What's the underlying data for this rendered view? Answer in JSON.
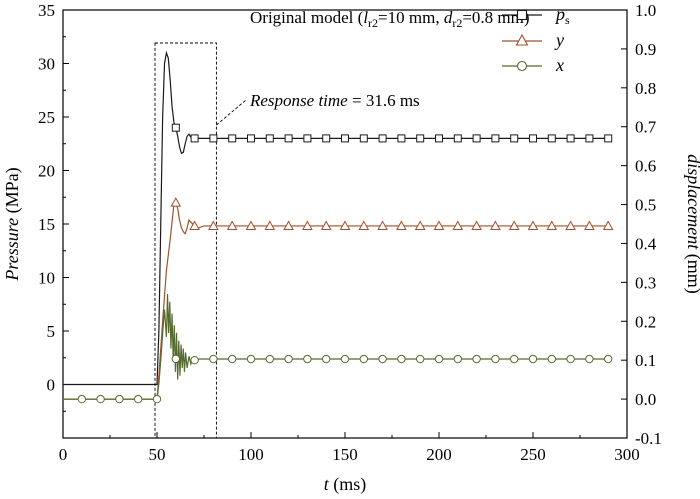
{
  "chart_data": {
    "type": "line",
    "title": {
      "prefix": "Original model (",
      "l_sym": "l",
      "l_sub": "r2",
      "l_val": "=10 mm, ",
      "d_sym": "d",
      "d_sub": "r2",
      "d_val": "=0.8 mm)"
    },
    "xlabel": {
      "sym": "t",
      "unit": " (ms)"
    },
    "ylabel_left": {
      "sym": "Pressure",
      "unit": " (MPa)"
    },
    "ylabel_right": {
      "sym": "displacement",
      "unit": " (mm)"
    },
    "xlim": [
      0,
      300
    ],
    "ylim_left": [
      -5,
      35
    ],
    "ylim_right": [
      -0.1,
      1.0
    ],
    "x_ticks": [
      "0",
      "50",
      "100",
      "150",
      "200",
      "250",
      "300"
    ],
    "y_left_ticks": [
      "0",
      "5",
      "10",
      "15",
      "20",
      "25",
      "30",
      "35"
    ],
    "y_right_ticks": [
      "-0.1",
      "0.0",
      "0.1",
      "0.2",
      "0.3",
      "0.4",
      "0.5",
      "0.6",
      "0.7",
      "0.8",
      "0.9",
      "1.0"
    ],
    "legend": {
      "placement": "top-right"
    },
    "annotation": {
      "label": "Response time",
      "value": " = 31.6 ms",
      "box_t": [
        50,
        81.6
      ]
    },
    "series": [
      {
        "name": "p",
        "name_sub": "s",
        "axis": "left",
        "marker": "square",
        "color": "#1a1a1a",
        "points": [
          [
            0,
            0
          ],
          [
            10,
            0
          ],
          [
            20,
            0
          ],
          [
            30,
            0
          ],
          [
            40,
            0
          ],
          [
            49,
            0
          ],
          [
            50,
            0
          ],
          [
            51,
            5
          ],
          [
            52,
            15
          ],
          [
            53,
            25
          ],
          [
            54,
            30
          ],
          [
            55,
            31
          ],
          [
            56,
            30.5
          ],
          [
            57,
            28.5
          ],
          [
            58,
            26
          ],
          [
            59,
            24.5
          ],
          [
            60,
            24
          ],
          [
            61,
            23.2
          ],
          [
            62,
            22.2
          ],
          [
            63,
            21.6
          ],
          [
            64,
            21.7
          ],
          [
            65,
            22.5
          ],
          [
            66,
            23.2
          ],
          [
            67,
            23.4
          ],
          [
            68,
            23.1
          ],
          [
            70,
            23
          ],
          [
            75,
            23
          ],
          [
            80,
            23
          ],
          [
            290,
            23
          ]
        ],
        "markers_x": [
          60,
          70,
          80,
          90,
          100,
          110,
          120,
          130,
          140,
          150,
          160,
          170,
          180,
          190,
          200,
          210,
          220,
          230,
          240,
          250,
          260,
          270,
          280,
          290
        ]
      },
      {
        "name": "y",
        "axis": "right",
        "marker": "triangle",
        "color": "#a0522d",
        "points": [
          [
            0,
            0
          ],
          [
            10,
            0
          ],
          [
            20,
            0
          ],
          [
            30,
            0
          ],
          [
            40,
            0
          ],
          [
            49,
            0
          ],
          [
            50,
            0
          ],
          [
            51,
            0.06
          ],
          [
            53,
            0.2
          ],
          [
            55,
            0.33
          ],
          [
            57,
            0.41
          ],
          [
            59,
            0.5
          ],
          [
            60,
            0.505
          ],
          [
            61,
            0.49
          ],
          [
            62,
            0.46
          ],
          [
            63,
            0.44
          ],
          [
            64,
            0.43
          ],
          [
            65,
            0.425
          ],
          [
            66,
            0.44
          ],
          [
            67,
            0.46
          ],
          [
            68,
            0.455
          ],
          [
            70,
            0.445
          ],
          [
            72,
            0.44
          ],
          [
            75,
            0.445
          ],
          [
            80,
            0.445
          ],
          [
            290,
            0.445
          ]
        ],
        "markers_x": [
          60,
          70,
          80,
          90,
          100,
          110,
          120,
          130,
          140,
          150,
          160,
          170,
          180,
          190,
          200,
          210,
          220,
          230,
          240,
          250,
          260,
          270,
          280,
          290
        ]
      },
      {
        "name": "x",
        "axis": "right",
        "marker": "circle",
        "color": "#556b2f",
        "points": [
          [
            0,
            0
          ],
          [
            10,
            0
          ],
          [
            20,
            0
          ],
          [
            30,
            0
          ],
          [
            40,
            0
          ],
          [
            49,
            0
          ],
          [
            50,
            0
          ],
          [
            51,
            0.04
          ],
          [
            52,
            0.1
          ],
          [
            53,
            0.17
          ],
          [
            54,
            0.23
          ],
          [
            55,
            0.16
          ],
          [
            55.6,
            0.27
          ],
          [
            56.2,
            0.17
          ],
          [
            56.8,
            0.25
          ],
          [
            57.4,
            0.13
          ],
          [
            58,
            0.22
          ],
          [
            58.6,
            0.1
          ],
          [
            59.2,
            0.19
          ],
          [
            59.8,
            0.07
          ],
          [
            60.4,
            0.17
          ],
          [
            61,
            0.05
          ],
          [
            61.6,
            0.15
          ],
          [
            62.2,
            0.06
          ],
          [
            62.8,
            0.14
          ],
          [
            63.4,
            0.08
          ],
          [
            64,
            0.13
          ],
          [
            64.6,
            0.07
          ],
          [
            65.2,
            0.12
          ],
          [
            66,
            0.08
          ],
          [
            67,
            0.11
          ],
          [
            68,
            0.09
          ],
          [
            69,
            0.105
          ],
          [
            70,
            0.1
          ],
          [
            72,
            0.103
          ],
          [
            75,
            0.103
          ],
          [
            80,
            0.103
          ],
          [
            290,
            0.103
          ]
        ],
        "markers_x": [
          10,
          20,
          30,
          40,
          50,
          60,
          70,
          80,
          90,
          100,
          110,
          120,
          130,
          140,
          150,
          160,
          170,
          180,
          190,
          200,
          210,
          220,
          230,
          240,
          250,
          260,
          270,
          280,
          290
        ]
      }
    ]
  }
}
